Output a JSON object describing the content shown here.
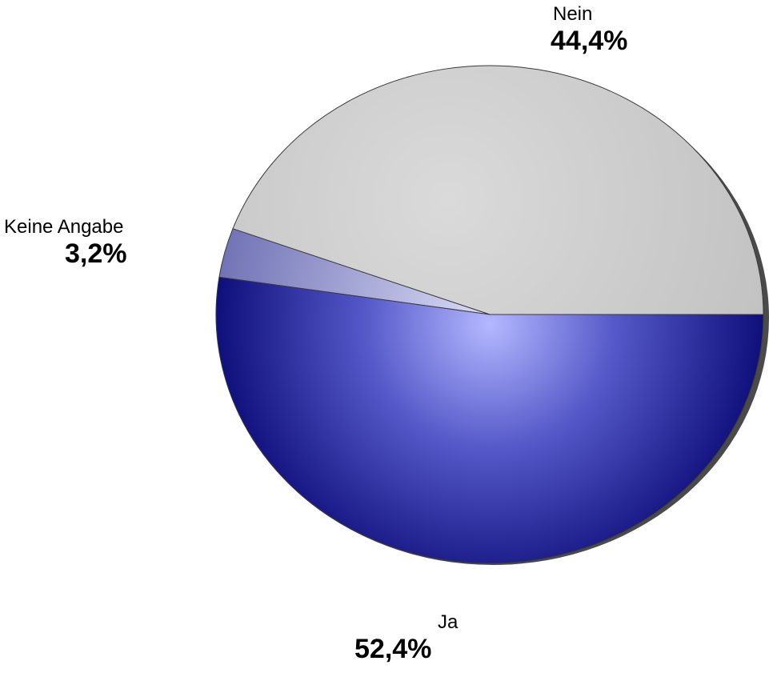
{
  "chart_data": {
    "type": "pie",
    "title": "",
    "slices": [
      {
        "label": "Nein",
        "value": 44.4,
        "display": "44,4%",
        "color": "#c8c8c8"
      },
      {
        "label": "Keine Angabe",
        "value": 3.2,
        "display": "3,2%",
        "color": "#8083c0"
      },
      {
        "label": "Ja",
        "value": 52.4,
        "display": "52,4%",
        "color": "#16168c"
      }
    ],
    "legend": "none",
    "data_labels": "outside"
  }
}
